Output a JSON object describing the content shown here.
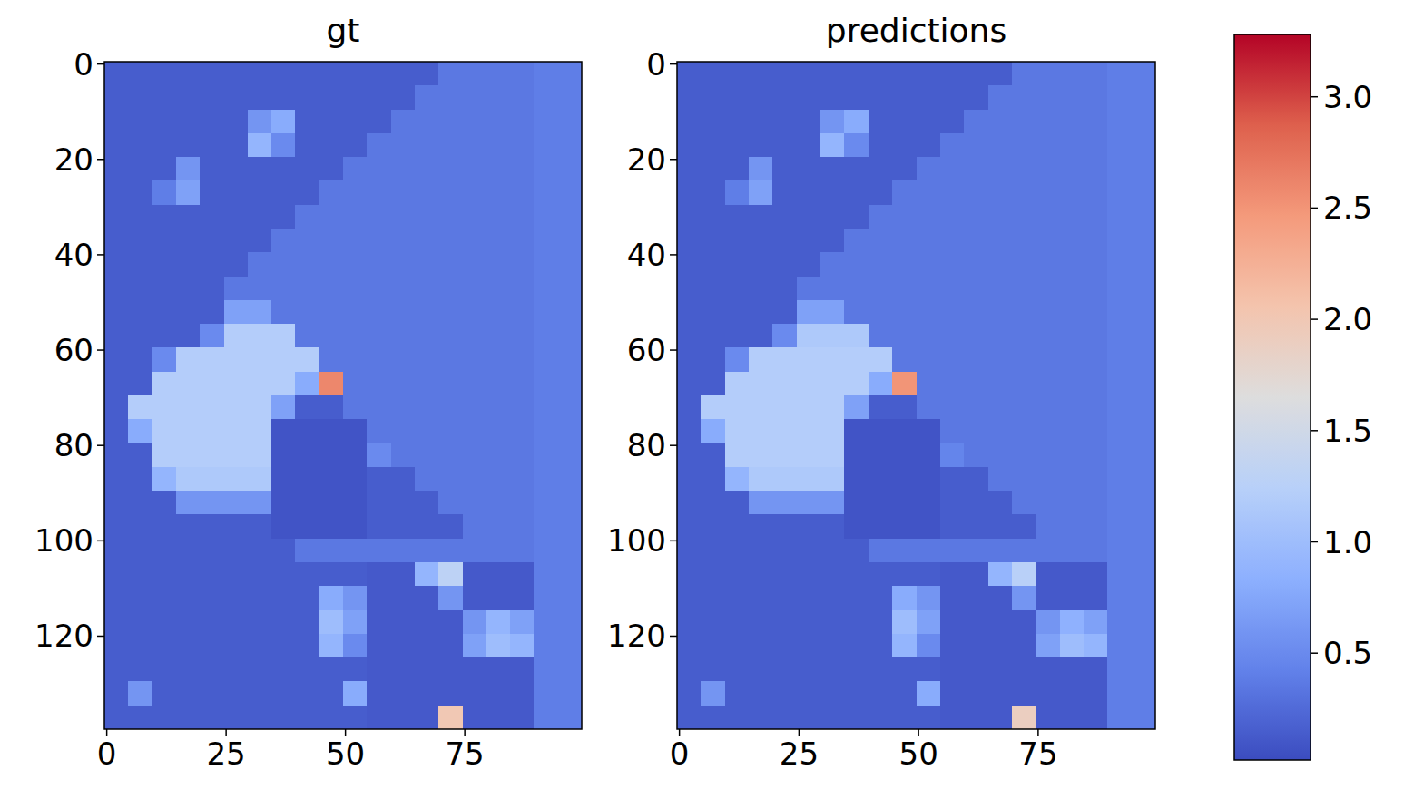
{
  "chart_data": [
    {
      "type": "heatmap",
      "title": "gt",
      "color": "coolwarm",
      "xlim": [
        -0.5,
        99.5
      ],
      "ylim": [
        139.5,
        -0.5
      ],
      "xticks": [
        0,
        25,
        50,
        75
      ],
      "yticks": [
        0,
        20,
        40,
        60,
        80,
        100,
        120
      ],
      "cells": [
        [
          0.15,
          0.15,
          0.15,
          0.15,
          0.15,
          0.15,
          0.15,
          0.15,
          0.15,
          0.15,
          0.15,
          0.15,
          0.15,
          0.15,
          0.35,
          0.35,
          0.35,
          0.35,
          0.4,
          0.4
        ],
        [
          0.15,
          0.15,
          0.15,
          0.15,
          0.15,
          0.15,
          0.15,
          0.15,
          0.15,
          0.15,
          0.15,
          0.15,
          0.15,
          0.35,
          0.35,
          0.35,
          0.35,
          0.35,
          0.4,
          0.4
        ],
        [
          0.15,
          0.15,
          0.15,
          0.15,
          0.15,
          0.15,
          0.6,
          0.8,
          0.15,
          0.15,
          0.15,
          0.15,
          0.35,
          0.35,
          0.35,
          0.35,
          0.35,
          0.35,
          0.4,
          0.4
        ],
        [
          0.15,
          0.15,
          0.15,
          0.15,
          0.15,
          0.15,
          0.9,
          0.5,
          0.15,
          0.15,
          0.15,
          0.35,
          0.35,
          0.35,
          0.35,
          0.35,
          0.35,
          0.35,
          0.4,
          0.4
        ],
        [
          0.15,
          0.15,
          0.15,
          0.6,
          0.15,
          0.15,
          0.15,
          0.15,
          0.15,
          0.15,
          0.35,
          0.35,
          0.35,
          0.35,
          0.35,
          0.35,
          0.35,
          0.35,
          0.4,
          0.4
        ],
        [
          0.15,
          0.15,
          0.4,
          0.7,
          0.15,
          0.15,
          0.15,
          0.15,
          0.15,
          0.35,
          0.35,
          0.35,
          0.35,
          0.35,
          0.35,
          0.35,
          0.35,
          0.35,
          0.4,
          0.4
        ],
        [
          0.15,
          0.15,
          0.15,
          0.15,
          0.15,
          0.15,
          0.15,
          0.15,
          0.35,
          0.35,
          0.35,
          0.35,
          0.35,
          0.35,
          0.35,
          0.35,
          0.35,
          0.35,
          0.4,
          0.4
        ],
        [
          0.15,
          0.15,
          0.15,
          0.15,
          0.15,
          0.15,
          0.15,
          0.35,
          0.35,
          0.35,
          0.35,
          0.35,
          0.35,
          0.35,
          0.35,
          0.35,
          0.35,
          0.35,
          0.4,
          0.4
        ],
        [
          0.15,
          0.15,
          0.15,
          0.15,
          0.15,
          0.15,
          0.35,
          0.35,
          0.35,
          0.35,
          0.35,
          0.35,
          0.35,
          0.35,
          0.35,
          0.35,
          0.35,
          0.35,
          0.4,
          0.4
        ],
        [
          0.15,
          0.15,
          0.15,
          0.15,
          0.15,
          0.35,
          0.35,
          0.35,
          0.35,
          0.35,
          0.35,
          0.35,
          0.35,
          0.35,
          0.35,
          0.35,
          0.35,
          0.35,
          0.4,
          0.4
        ],
        [
          0.15,
          0.15,
          0.15,
          0.15,
          0.15,
          0.7,
          0.7,
          0.35,
          0.35,
          0.35,
          0.35,
          0.35,
          0.35,
          0.35,
          0.35,
          0.35,
          0.35,
          0.35,
          0.4,
          0.4
        ],
        [
          0.15,
          0.15,
          0.15,
          0.15,
          0.5,
          1.2,
          1.2,
          1.2,
          0.35,
          0.35,
          0.35,
          0.35,
          0.35,
          0.35,
          0.35,
          0.35,
          0.35,
          0.35,
          0.4,
          0.4
        ],
        [
          0.15,
          0.15,
          0.5,
          1.2,
          1.2,
          1.2,
          1.2,
          1.2,
          1.2,
          0.35,
          0.35,
          0.35,
          0.35,
          0.35,
          0.35,
          0.35,
          0.35,
          0.35,
          0.4,
          0.4
        ],
        [
          0.15,
          0.15,
          1.2,
          1.2,
          1.2,
          1.2,
          1.2,
          1.2,
          0.8,
          2.6,
          0.35,
          0.35,
          0.35,
          0.35,
          0.35,
          0.35,
          0.35,
          0.35,
          0.4,
          0.4
        ],
        [
          0.15,
          1.2,
          1.2,
          1.2,
          1.2,
          1.2,
          1.2,
          0.7,
          0.15,
          0.15,
          0.35,
          0.35,
          0.35,
          0.35,
          0.35,
          0.35,
          0.35,
          0.35,
          0.4,
          0.4
        ],
        [
          0.15,
          0.8,
          1.2,
          1.2,
          1.2,
          1.2,
          1.2,
          0.08,
          0.08,
          0.08,
          0.08,
          0.35,
          0.35,
          0.35,
          0.35,
          0.35,
          0.35,
          0.35,
          0.4,
          0.4
        ],
        [
          0.15,
          0.15,
          1.2,
          1.2,
          1.2,
          1.2,
          1.2,
          0.08,
          0.08,
          0.08,
          0.08,
          0.5,
          0.35,
          0.35,
          0.35,
          0.35,
          0.35,
          0.35,
          0.4,
          0.4
        ],
        [
          0.15,
          0.15,
          0.9,
          1.15,
          1.15,
          1.15,
          1.15,
          0.08,
          0.08,
          0.08,
          0.08,
          0.15,
          0.15,
          0.35,
          0.35,
          0.35,
          0.35,
          0.35,
          0.4,
          0.4
        ],
        [
          0.15,
          0.15,
          0.15,
          0.6,
          0.6,
          0.6,
          0.6,
          0.08,
          0.08,
          0.08,
          0.08,
          0.15,
          0.15,
          0.15,
          0.35,
          0.35,
          0.35,
          0.35,
          0.4,
          0.4
        ],
        [
          0.15,
          0.15,
          0.15,
          0.15,
          0.15,
          0.15,
          0.15,
          0.08,
          0.08,
          0.08,
          0.08,
          0.15,
          0.15,
          0.15,
          0.15,
          0.35,
          0.35,
          0.35,
          0.4,
          0.4
        ],
        [
          0.15,
          0.15,
          0.15,
          0.15,
          0.15,
          0.15,
          0.15,
          0.15,
          0.35,
          0.35,
          0.35,
          0.35,
          0.35,
          0.35,
          0.35,
          0.35,
          0.35,
          0.35,
          0.4,
          0.4
        ],
        [
          0.15,
          0.15,
          0.15,
          0.15,
          0.15,
          0.15,
          0.15,
          0.15,
          0.15,
          0.15,
          0.15,
          0.12,
          0.12,
          0.9,
          1.3,
          0.12,
          0.12,
          0.12,
          0.4,
          0.4
        ],
        [
          0.15,
          0.15,
          0.15,
          0.15,
          0.15,
          0.15,
          0.15,
          0.15,
          0.15,
          0.8,
          0.6,
          0.12,
          0.12,
          0.12,
          0.6,
          0.12,
          0.12,
          0.12,
          0.4,
          0.4
        ],
        [
          0.15,
          0.15,
          0.15,
          0.15,
          0.15,
          0.15,
          0.15,
          0.15,
          0.15,
          1.0,
          0.7,
          0.12,
          0.12,
          0.12,
          0.12,
          0.6,
          0.9,
          0.7,
          0.4,
          0.4
        ],
        [
          0.15,
          0.15,
          0.15,
          0.15,
          0.15,
          0.15,
          0.15,
          0.15,
          0.15,
          0.9,
          0.5,
          0.12,
          0.12,
          0.12,
          0.12,
          0.7,
          1.0,
          0.9,
          0.4,
          0.4
        ],
        [
          0.15,
          0.15,
          0.15,
          0.15,
          0.15,
          0.15,
          0.15,
          0.15,
          0.15,
          0.15,
          0.15,
          0.12,
          0.12,
          0.12,
          0.12,
          0.12,
          0.12,
          0.12,
          0.4,
          0.4
        ],
        [
          0.15,
          0.6,
          0.15,
          0.15,
          0.15,
          0.15,
          0.15,
          0.15,
          0.15,
          0.15,
          0.8,
          0.12,
          0.12,
          0.12,
          0.12,
          0.12,
          0.12,
          0.12,
          0.4,
          0.4
        ],
        [
          0.15,
          0.15,
          0.15,
          0.15,
          0.15,
          0.15,
          0.15,
          0.15,
          0.15,
          0.15,
          0.15,
          0.12,
          0.12,
          0.12,
          2.0,
          0.12,
          0.12,
          0.12,
          0.4,
          0.4
        ]
      ]
    },
    {
      "type": "heatmap",
      "title": "predictions",
      "color": "coolwarm",
      "xlim": [
        -0.5,
        99.5
      ],
      "ylim": [
        139.5,
        -0.5
      ],
      "xticks": [
        0,
        25,
        50,
        75
      ],
      "yticks": [
        0,
        20,
        40,
        60,
        80,
        100,
        120
      ],
      "cells": [
        [
          0.15,
          0.15,
          0.15,
          0.15,
          0.15,
          0.15,
          0.15,
          0.15,
          0.15,
          0.15,
          0.15,
          0.15,
          0.15,
          0.15,
          0.35,
          0.35,
          0.35,
          0.35,
          0.4,
          0.4
        ],
        [
          0.15,
          0.15,
          0.15,
          0.15,
          0.15,
          0.15,
          0.15,
          0.15,
          0.15,
          0.15,
          0.15,
          0.15,
          0.15,
          0.35,
          0.35,
          0.35,
          0.35,
          0.35,
          0.4,
          0.4
        ],
        [
          0.15,
          0.15,
          0.15,
          0.15,
          0.15,
          0.15,
          0.6,
          0.8,
          0.15,
          0.15,
          0.15,
          0.15,
          0.35,
          0.35,
          0.35,
          0.35,
          0.35,
          0.35,
          0.4,
          0.4
        ],
        [
          0.15,
          0.15,
          0.15,
          0.15,
          0.15,
          0.15,
          0.9,
          0.5,
          0.15,
          0.15,
          0.15,
          0.35,
          0.35,
          0.35,
          0.35,
          0.35,
          0.35,
          0.35,
          0.4,
          0.4
        ],
        [
          0.15,
          0.15,
          0.15,
          0.6,
          0.15,
          0.15,
          0.15,
          0.15,
          0.15,
          0.15,
          0.35,
          0.35,
          0.35,
          0.35,
          0.35,
          0.35,
          0.35,
          0.35,
          0.4,
          0.4
        ],
        [
          0.15,
          0.15,
          0.4,
          0.7,
          0.15,
          0.15,
          0.15,
          0.15,
          0.15,
          0.35,
          0.35,
          0.35,
          0.35,
          0.35,
          0.35,
          0.35,
          0.35,
          0.35,
          0.4,
          0.4
        ],
        [
          0.15,
          0.15,
          0.15,
          0.15,
          0.15,
          0.15,
          0.15,
          0.15,
          0.35,
          0.35,
          0.35,
          0.35,
          0.35,
          0.35,
          0.35,
          0.35,
          0.35,
          0.35,
          0.4,
          0.4
        ],
        [
          0.15,
          0.15,
          0.15,
          0.15,
          0.15,
          0.15,
          0.15,
          0.35,
          0.35,
          0.35,
          0.35,
          0.35,
          0.35,
          0.35,
          0.35,
          0.35,
          0.35,
          0.35,
          0.4,
          0.4
        ],
        [
          0.15,
          0.15,
          0.15,
          0.15,
          0.15,
          0.15,
          0.35,
          0.35,
          0.35,
          0.35,
          0.35,
          0.35,
          0.35,
          0.35,
          0.35,
          0.35,
          0.35,
          0.35,
          0.4,
          0.4
        ],
        [
          0.15,
          0.15,
          0.15,
          0.15,
          0.15,
          0.35,
          0.35,
          0.35,
          0.35,
          0.35,
          0.35,
          0.35,
          0.35,
          0.35,
          0.35,
          0.35,
          0.35,
          0.35,
          0.4,
          0.4
        ],
        [
          0.15,
          0.15,
          0.15,
          0.15,
          0.15,
          0.7,
          0.7,
          0.35,
          0.35,
          0.35,
          0.35,
          0.35,
          0.35,
          0.35,
          0.35,
          0.35,
          0.35,
          0.35,
          0.4,
          0.4
        ],
        [
          0.15,
          0.15,
          0.15,
          0.15,
          0.5,
          1.15,
          1.15,
          1.15,
          0.35,
          0.35,
          0.35,
          0.35,
          0.35,
          0.35,
          0.35,
          0.35,
          0.35,
          0.35,
          0.4,
          0.4
        ],
        [
          0.15,
          0.15,
          0.5,
          1.2,
          1.2,
          1.2,
          1.2,
          1.2,
          1.2,
          0.35,
          0.35,
          0.35,
          0.35,
          0.35,
          0.35,
          0.35,
          0.35,
          0.35,
          0.4,
          0.4
        ],
        [
          0.15,
          0.15,
          1.2,
          1.2,
          1.2,
          1.2,
          1.2,
          1.2,
          0.8,
          2.5,
          0.35,
          0.35,
          0.35,
          0.35,
          0.35,
          0.35,
          0.35,
          0.35,
          0.4,
          0.4
        ],
        [
          0.15,
          1.2,
          1.2,
          1.2,
          1.2,
          1.2,
          1.2,
          0.7,
          0.15,
          0.15,
          0.35,
          0.35,
          0.35,
          0.35,
          0.35,
          0.35,
          0.35,
          0.35,
          0.4,
          0.4
        ],
        [
          0.15,
          0.8,
          1.2,
          1.2,
          1.2,
          1.2,
          1.2,
          0.08,
          0.08,
          0.08,
          0.08,
          0.35,
          0.35,
          0.35,
          0.35,
          0.35,
          0.35,
          0.35,
          0.4,
          0.4
        ],
        [
          0.15,
          0.15,
          1.2,
          1.2,
          1.2,
          1.2,
          1.2,
          0.08,
          0.08,
          0.08,
          0.08,
          0.45,
          0.35,
          0.35,
          0.35,
          0.35,
          0.35,
          0.35,
          0.4,
          0.4
        ],
        [
          0.15,
          0.15,
          0.9,
          1.15,
          1.15,
          1.15,
          1.15,
          0.08,
          0.08,
          0.08,
          0.08,
          0.15,
          0.15,
          0.35,
          0.35,
          0.35,
          0.35,
          0.35,
          0.4,
          0.4
        ],
        [
          0.15,
          0.15,
          0.15,
          0.6,
          0.6,
          0.6,
          0.6,
          0.08,
          0.08,
          0.08,
          0.08,
          0.15,
          0.15,
          0.15,
          0.35,
          0.35,
          0.35,
          0.35,
          0.4,
          0.4
        ],
        [
          0.15,
          0.15,
          0.15,
          0.15,
          0.15,
          0.15,
          0.15,
          0.08,
          0.08,
          0.08,
          0.08,
          0.15,
          0.15,
          0.15,
          0.15,
          0.35,
          0.35,
          0.35,
          0.4,
          0.4
        ],
        [
          0.15,
          0.15,
          0.15,
          0.15,
          0.15,
          0.15,
          0.15,
          0.15,
          0.35,
          0.35,
          0.35,
          0.35,
          0.35,
          0.35,
          0.35,
          0.35,
          0.35,
          0.35,
          0.4,
          0.4
        ],
        [
          0.15,
          0.15,
          0.15,
          0.15,
          0.15,
          0.15,
          0.15,
          0.15,
          0.15,
          0.15,
          0.15,
          0.12,
          0.12,
          0.9,
          1.25,
          0.12,
          0.12,
          0.12,
          0.4,
          0.4
        ],
        [
          0.15,
          0.15,
          0.15,
          0.15,
          0.15,
          0.15,
          0.15,
          0.15,
          0.15,
          0.8,
          0.6,
          0.12,
          0.12,
          0.12,
          0.6,
          0.12,
          0.12,
          0.12,
          0.4,
          0.4
        ],
        [
          0.15,
          0.15,
          0.15,
          0.15,
          0.15,
          0.15,
          0.15,
          0.15,
          0.15,
          1.0,
          0.7,
          0.12,
          0.12,
          0.12,
          0.12,
          0.6,
          0.85,
          0.7,
          0.4,
          0.4
        ],
        [
          0.15,
          0.15,
          0.15,
          0.15,
          0.15,
          0.15,
          0.15,
          0.15,
          0.15,
          0.9,
          0.5,
          0.12,
          0.12,
          0.12,
          0.12,
          0.7,
          1.0,
          0.9,
          0.4,
          0.4
        ],
        [
          0.15,
          0.15,
          0.15,
          0.15,
          0.15,
          0.15,
          0.15,
          0.15,
          0.15,
          0.15,
          0.15,
          0.12,
          0.12,
          0.12,
          0.12,
          0.12,
          0.12,
          0.12,
          0.4,
          0.4
        ],
        [
          0.15,
          0.6,
          0.15,
          0.15,
          0.15,
          0.15,
          0.15,
          0.15,
          0.15,
          0.15,
          0.8,
          0.12,
          0.12,
          0.12,
          0.12,
          0.12,
          0.12,
          0.12,
          0.4,
          0.4
        ],
        [
          0.15,
          0.15,
          0.15,
          0.15,
          0.15,
          0.15,
          0.15,
          0.15,
          0.15,
          0.15,
          0.15,
          0.12,
          0.12,
          0.12,
          1.9,
          0.12,
          0.12,
          0.12,
          0.4,
          0.4
        ]
      ]
    }
  ],
  "colorbar": {
    "range": [
      0.02,
      3.28
    ],
    "ticks": [
      0.5,
      {
        "value": 1,
        "label": "1.0"
      },
      1.5,
      {
        "value": 2,
        "label": "2.0"
      },
      2.5,
      {
        "value": 3,
        "label": "3.0"
      }
    ]
  }
}
